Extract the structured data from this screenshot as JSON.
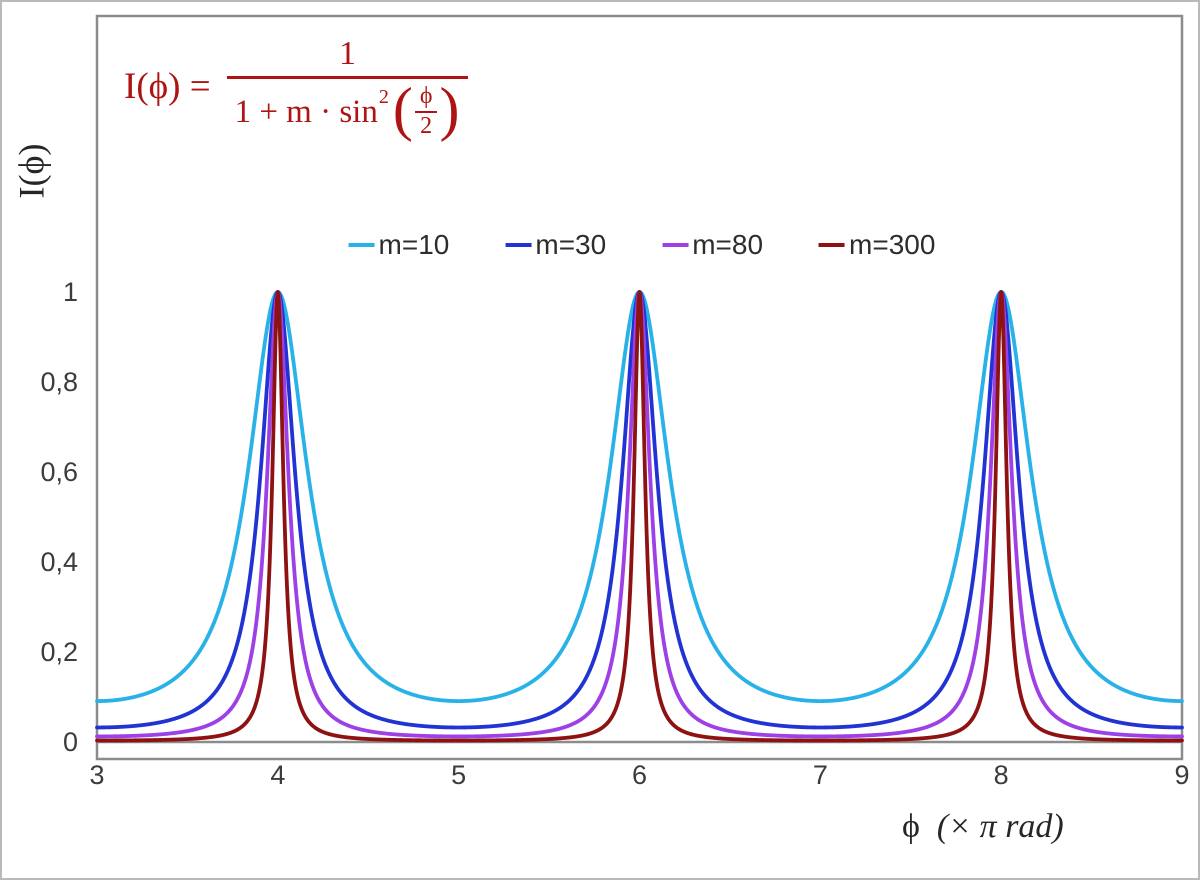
{
  "figure": {
    "formula": {
      "lhs": "I(ϕ) =",
      "numerator": "1",
      "den_text": "1 + m · sin",
      "den_sup": "2",
      "open_paren": "(",
      "inner_num": "ϕ",
      "inner_den": "2",
      "close_paren": ")",
      "color": "#ad1413"
    },
    "y_axis_title": "I(ϕ)",
    "x_axis_title_phi": "ϕ",
    "x_axis_title_rest": "(× π rad)"
  },
  "chart_data": {
    "type": "line",
    "title": "",
    "formula_text": "I(ϕ) = 1 / (1 + m·sin²(ϕ/2))",
    "function": "I(x) = 1 / (1 + m * sin(pi*x/2)^2), x in units of pi rad",
    "xlabel": "ϕ (× π rad)",
    "ylabel": "I(ϕ)",
    "xlim": [
      3,
      9
    ],
    "ylim": [
      0,
      1.61
    ],
    "grid": false,
    "legend_position": "top-center",
    "x_ticks": [
      "3",
      "4",
      "5",
      "6",
      "7",
      "8",
      "9"
    ],
    "y_ticks": [
      {
        "v": 1.0,
        "label": "1"
      },
      {
        "v": 0.8,
        "label": "0,8"
      },
      {
        "v": 0.6,
        "label": "0,6"
      },
      {
        "v": 0.4,
        "label": "0,4"
      },
      {
        "v": 0.2,
        "label": "0,2"
      },
      {
        "v": 0.0,
        "label": "0"
      }
    ],
    "peaks_at_x": [
      4,
      6,
      8
    ],
    "peak_value": 1,
    "series": [
      {
        "name": "m=10",
        "m": 10,
        "color": "#29b2e8",
        "min_value": 0.0909
      },
      {
        "name": "m=30",
        "m": 30,
        "color": "#2133d2",
        "min_value": 0.0323
      },
      {
        "name": "m=80",
        "m": 80,
        "color": "#9d41e6",
        "min_value": 0.0123
      },
      {
        "name": "m=300",
        "m": 300,
        "color": "#8e1211",
        "min_value": 0.0033
      }
    ],
    "axis_color": "#8c8c8c",
    "tick_label_color": "#3c3c3c"
  }
}
